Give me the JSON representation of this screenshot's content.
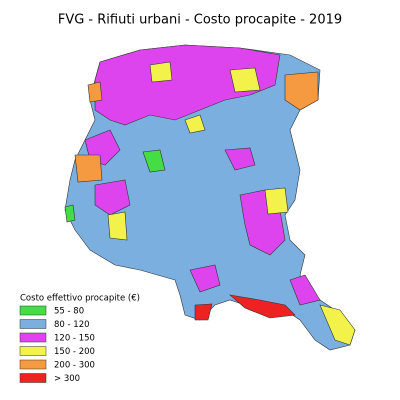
{
  "title": "FVG - Rifiuti urbani - Costo procapite - 2019",
  "legend": {
    "title": "Costo effettivo procapite (€)",
    "items": [
      {
        "label": "55 - 80",
        "color": "#44dd44"
      },
      {
        "label": "80 - 120",
        "color": "#7aafe0"
      },
      {
        "label": "120 - 150",
        "color": "#dd44ee"
      },
      {
        "label": "150 - 200",
        "color": "#f2f24a"
      },
      {
        "label": "200 - 300",
        "color": "#f59a40"
      },
      {
        "label": "> 300",
        "color": "#ee2222"
      }
    ]
  }
}
